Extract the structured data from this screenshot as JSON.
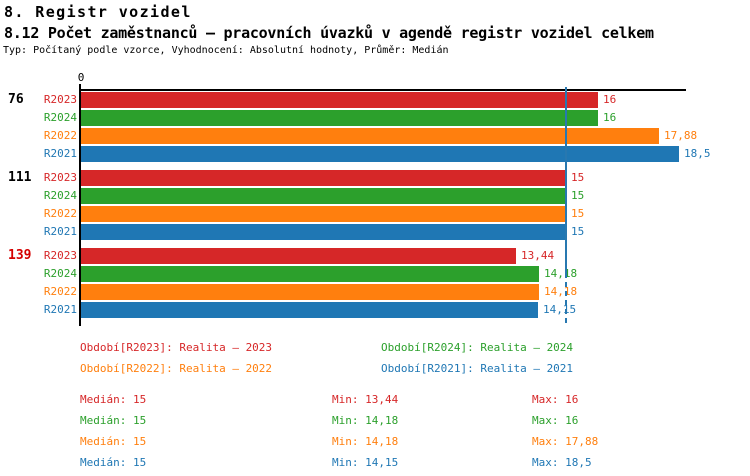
{
  "header": {
    "title": "8. Registr vozidel",
    "subtitle": "8.12 Počet zaměstnanců – pracovních úvazků v agendě registr vozidel celkem",
    "meta": "Typ: Počítaný podle vzorce, Vyhodnocení: Absolutní hodnoty, Průměr: Medián"
  },
  "series": {
    "R2023": {
      "label": "R2023",
      "color": "#d62728",
      "legend": "Období[R2023]: Realita – 2023"
    },
    "R2024": {
      "label": "R2024",
      "color": "#2ca02c",
      "legend": "Období[R2024]: Realita – 2024"
    },
    "R2022": {
      "label": "R2022",
      "color": "#ff7f0e",
      "legend": "Období[R2022]: Realita – 2022"
    },
    "R2021": {
      "label": "R2021",
      "color": "#1f77b4",
      "legend": "Období[R2021]: Realita – 2021"
    }
  },
  "chart_data": {
    "type": "bar",
    "orientation": "horizontal",
    "axis_origin_label": "0",
    "xlim": [
      0,
      18.7
    ],
    "grid": false,
    "median_line_value": 15,
    "median_line_color": "#2878b0",
    "series_order": [
      "R2023",
      "R2024",
      "R2022",
      "R2021"
    ],
    "groups": [
      {
        "label": "76",
        "label_color": "#000000",
        "bars": [
          {
            "series": "R2023",
            "value": 16,
            "display": "16"
          },
          {
            "series": "R2024",
            "value": 16,
            "display": "16"
          },
          {
            "series": "R2022",
            "value": 17.88,
            "display": "17,88"
          },
          {
            "series": "R2021",
            "value": 18.5,
            "display": "18,5"
          }
        ]
      },
      {
        "label": "111",
        "label_color": "#000000",
        "bars": [
          {
            "series": "R2023",
            "value": 15,
            "display": "15"
          },
          {
            "series": "R2024",
            "value": 15,
            "display": "15"
          },
          {
            "series": "R2022",
            "value": 15,
            "display": "15"
          },
          {
            "series": "R2021",
            "value": 15,
            "display": "15"
          }
        ]
      },
      {
        "label": "139",
        "label_color": "#d40000",
        "bars": [
          {
            "series": "R2023",
            "value": 13.44,
            "display": "13,44"
          },
          {
            "series": "R2024",
            "value": 14.18,
            "display": "14,18"
          },
          {
            "series": "R2022",
            "value": 14.18,
            "display": "14,18"
          },
          {
            "series": "R2021",
            "value": 14.15,
            "display": "14,15"
          }
        ]
      }
    ]
  },
  "legend": {
    "rows": [
      [
        "R2023",
        "R2024"
      ],
      [
        "R2022",
        "R2021"
      ]
    ]
  },
  "stats": [
    {
      "series": "R2023",
      "median": "Medián: 15",
      "min": "Min: 13,44",
      "max": "Max: 16"
    },
    {
      "series": "R2024",
      "median": "Medián: 15",
      "min": "Min: 14,18",
      "max": "Max: 16"
    },
    {
      "series": "R2022",
      "median": "Medián: 15",
      "min": "Min: 14,18",
      "max": "Max: 17,88"
    },
    {
      "series": "R2021",
      "median": "Medián: 15",
      "min": "Min: 14,15",
      "max": "Max: 18,5"
    }
  ]
}
